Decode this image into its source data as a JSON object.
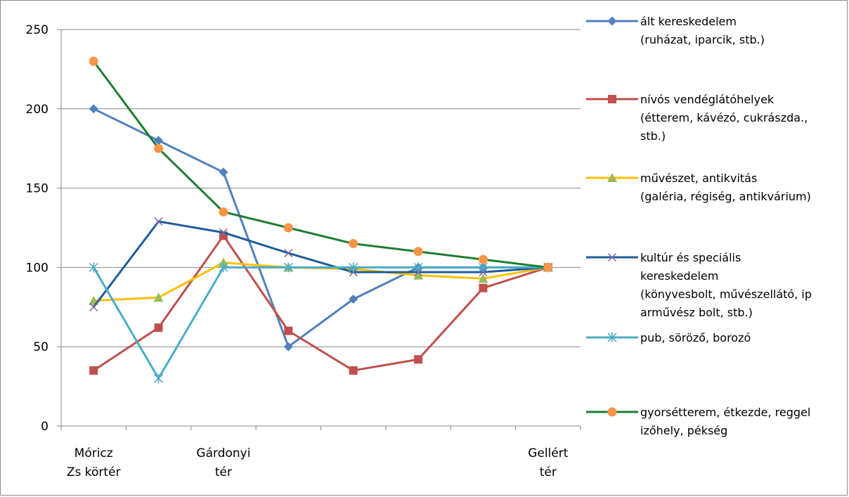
{
  "chart_data": {
    "type": "line",
    "categories": [
      [
        "Móricz",
        "Zs körtér"
      ],
      [
        "",
        ""
      ],
      [
        "Gárdonyi",
        "tér"
      ],
      [
        "",
        ""
      ],
      [
        "",
        ""
      ],
      [
        "",
        ""
      ],
      [
        "",
        ""
      ],
      [
        "Gellért",
        "tér"
      ]
    ],
    "ylim": [
      0,
      250
    ],
    "yticks": [
      0,
      50,
      100,
      150,
      200,
      250
    ],
    "grid": true,
    "legend_position": "right",
    "series": [
      {
        "name": "ált kereskedelem (ruházat, iparcik, stb.)",
        "legend_lines": [
          "ált kereskedelem",
          "(ruházat, iparcik, stb.)"
        ],
        "color": "#4f81bd",
        "marker": "diamond",
        "values": [
          200,
          180,
          160,
          50,
          80,
          100,
          100,
          100
        ]
      },
      {
        "name": "nívós vendéglátóhelyek (étterem, kávézó, cukrászda., stb.)",
        "legend_lines": [
          "nívós vendéglátóhelyek",
          "(étterem, kávézó, cukrászda.,",
          "stb.)"
        ],
        "color": "#c0504d",
        "marker": "square",
        "values": [
          35,
          62,
          120,
          60,
          35,
          42,
          87,
          100
        ]
      },
      {
        "name": "művészet, antikvitás (galéria, régiség, antikvárium)",
        "legend_lines": [
          "művészet, antikvitás",
          "(galéria, régiség, antikvárium)"
        ],
        "color": "#ffc000",
        "marker_color": "#9bbb59",
        "marker": "triangle",
        "values": [
          79,
          81,
          103,
          100,
          99,
          95,
          93,
          100
        ]
      },
      {
        "name": "kultúr és speciális kereskedelem (könyvesbolt, művészellátó, iparművész bolt, stb.)",
        "legend_lines": [
          "kultúr és speciális",
          "kereskedelem",
          "(könyvesbolt, művészellátó, ip",
          "arművész bolt, stb.)"
        ],
        "color": "#1f5c99",
        "marker_color": "#8064a2",
        "marker": "x",
        "values": [
          75,
          129,
          122,
          109,
          97,
          97,
          97,
          100
        ]
      },
      {
        "name": "pub, söröző, borozó",
        "legend_lines": [
          "pub, söröző, borozó"
        ],
        "color": "#4bacc6",
        "marker": "star",
        "values": [
          100,
          30,
          100,
          100,
          100,
          100,
          100,
          100
        ]
      },
      {
        "name": "gyorsétterem, étkezde, reggelizőhely, pékség",
        "legend_lines": [
          "gyorsétterem, étkezde, reggel",
          "izőhely, pékség"
        ],
        "color": "#1e7d32",
        "marker_color": "#f79646",
        "marker": "circle",
        "values": [
          230,
          175,
          135,
          125,
          115,
          110,
          105,
          100
        ]
      }
    ]
  }
}
